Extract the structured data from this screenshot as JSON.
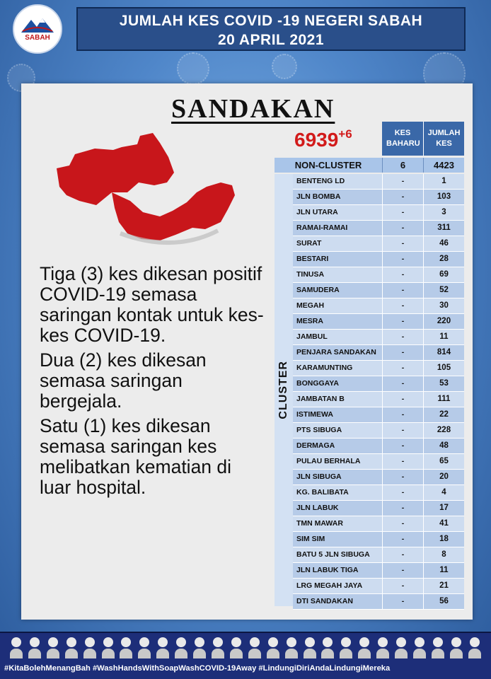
{
  "logo": {
    "text": "SABAH"
  },
  "header": {
    "line1": "JUMLAH KES COVID -19 NEGERI SABAH",
    "line2": "20 APRIL 2021"
  },
  "district": "SANDAKAN",
  "total": {
    "cases": "6939",
    "new": "+6"
  },
  "table": {
    "col_new": "KES BAHARU",
    "col_total": "JUMLAH KES",
    "noncluster": {
      "name": "NON-CLUSTER",
      "baru": "6",
      "jumlah": "4423"
    },
    "cluster_label": "CLUSTER",
    "rows": [
      {
        "name": "BENTENG LD",
        "baru": "-",
        "jumlah": "1"
      },
      {
        "name": "JLN BOMBA",
        "baru": "-",
        "jumlah": "103"
      },
      {
        "name": "JLN UTARA",
        "baru": "-",
        "jumlah": "3"
      },
      {
        "name": "RAMAI-RAMAI",
        "baru": "-",
        "jumlah": "311"
      },
      {
        "name": "SURAT",
        "baru": "-",
        "jumlah": "46"
      },
      {
        "name": "BESTARI",
        "baru": "-",
        "jumlah": "28"
      },
      {
        "name": "TINUSA",
        "baru": "-",
        "jumlah": "69"
      },
      {
        "name": "SAMUDERA",
        "baru": "-",
        "jumlah": "52"
      },
      {
        "name": "MEGAH",
        "baru": "-",
        "jumlah": "30"
      },
      {
        "name": "MESRA",
        "baru": "-",
        "jumlah": "220"
      },
      {
        "name": "JAMBUL",
        "baru": "-",
        "jumlah": "11"
      },
      {
        "name": "PENJARA SANDAKAN",
        "baru": "-",
        "jumlah": "814"
      },
      {
        "name": "KARAMUNTING",
        "baru": "-",
        "jumlah": "105"
      },
      {
        "name": "BONGGAYA",
        "baru": "-",
        "jumlah": "53"
      },
      {
        "name": "JAMBATAN B",
        "baru": "-",
        "jumlah": "111"
      },
      {
        "name": "ISTIMEWA",
        "baru": "-",
        "jumlah": "22"
      },
      {
        "name": "PTS SIBUGA",
        "baru": "-",
        "jumlah": "228"
      },
      {
        "name": "DERMAGA",
        "baru": "-",
        "jumlah": "48"
      },
      {
        "name": "PULAU BERHALA",
        "baru": "-",
        "jumlah": "65"
      },
      {
        "name": "JLN SIBUGA",
        "baru": "-",
        "jumlah": "20"
      },
      {
        "name": "KG. BALIBATA",
        "baru": "-",
        "jumlah": "4"
      },
      {
        "name": "JLN LABUK",
        "baru": "-",
        "jumlah": "17"
      },
      {
        "name": "TMN MAWAR",
        "baru": "-",
        "jumlah": "41"
      },
      {
        "name": "SIM SIM",
        "baru": "-",
        "jumlah": "18"
      },
      {
        "name": "BATU 5 JLN SIBUGA",
        "baru": "-",
        "jumlah": "8"
      },
      {
        "name": "JLN LABUK TIGA",
        "baru": "-",
        "jumlah": "11"
      },
      {
        "name": "LRG MEGAH JAYA",
        "baru": "-",
        "jumlah": "21"
      },
      {
        "name": "DTI SANDAKAN",
        "baru": "-",
        "jumlah": "56"
      }
    ]
  },
  "description": [
    "Tiga (3) kes dikesan positif COVID-19 semasa saringan kontak untuk kes-kes COVID-19.",
    "Dua (2) kes dikesan semasa saringan bergejala.",
    "Satu (1) kes dikesan semasa saringan kes melibatkan kematian di luar hospital."
  ],
  "footer": {
    "hashtags": "#KitaBolehMenangBah #WashHandsWithSoapWashCOVID-19Away #LindungiDiriAndaLindungiMereka"
  },
  "colors": {
    "map_red": "#c8161b",
    "header_blue": "#2a4f8a",
    "table_header": "#3a68a8",
    "total_red": "#d21b1b"
  }
}
